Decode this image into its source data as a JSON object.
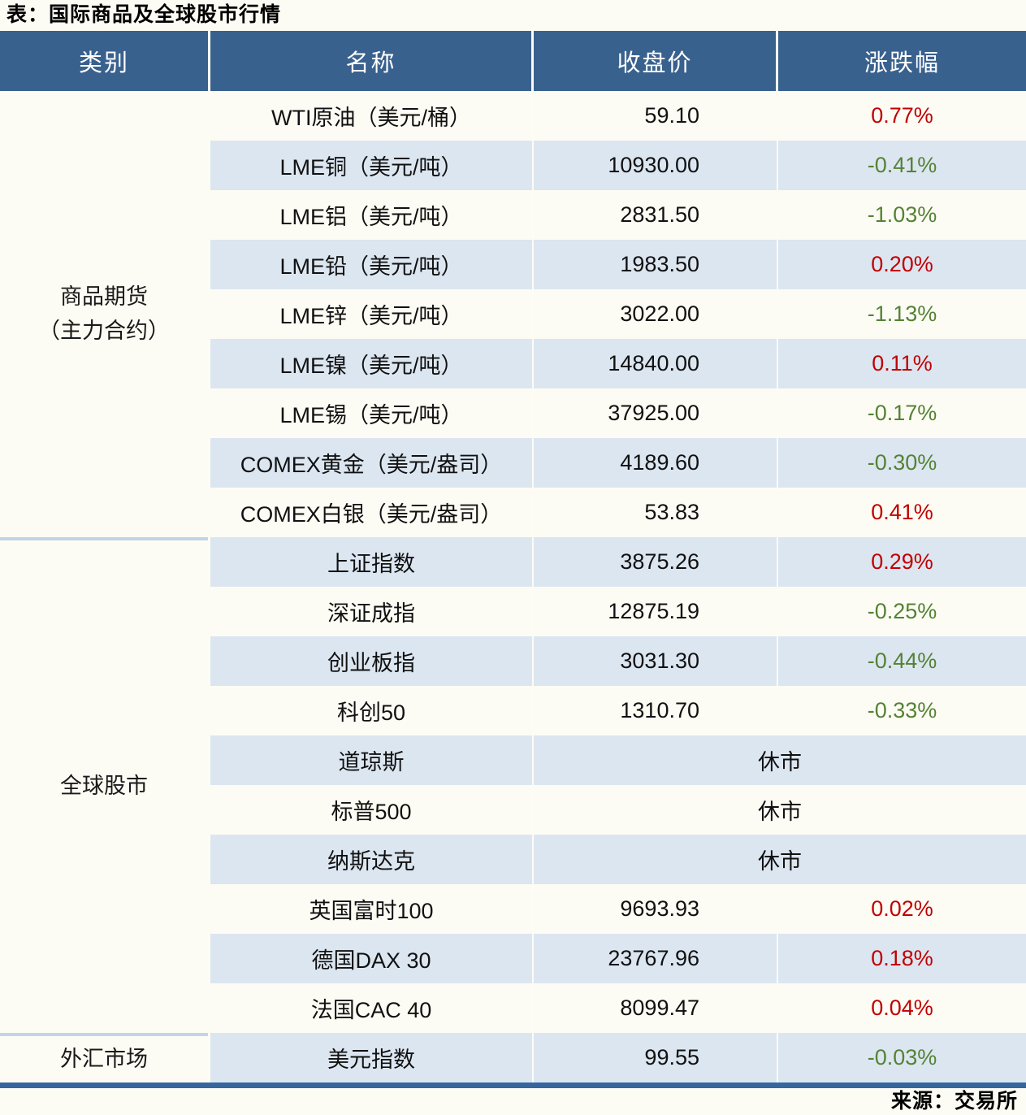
{
  "chart_data": {
    "type": "table",
    "title": "表：国际商品及全球股市行情",
    "source": "来源：交易所",
    "columns": [
      "类别",
      "名称",
      "收盘价",
      "涨跌幅"
    ],
    "closed_label": "休市",
    "category_groups": [
      {
        "lines": [
          "商品期货",
          "（主力合约）"
        ],
        "rows": "1-9"
      },
      {
        "lines": [
          "全球股市"
        ],
        "rows": "10-19"
      },
      {
        "lines": [
          "外汇市场"
        ],
        "rows": "20"
      }
    ],
    "rows": [
      {
        "name": "WTI原油（美元/桶）",
        "close": "59.10",
        "change": "0.77%",
        "dir": "up"
      },
      {
        "name": "LME铜（美元/吨）",
        "close": "10930.00",
        "change": "-0.41%",
        "dir": "down"
      },
      {
        "name": "LME铝（美元/吨）",
        "close": "2831.50",
        "change": "-1.03%",
        "dir": "down"
      },
      {
        "name": "LME铅（美元/吨）",
        "close": "1983.50",
        "change": "0.20%",
        "dir": "up"
      },
      {
        "name": "LME锌（美元/吨）",
        "close": "3022.00",
        "change": "-1.13%",
        "dir": "down"
      },
      {
        "name": "LME镍（美元/吨）",
        "close": "14840.00",
        "change": "0.11%",
        "dir": "up"
      },
      {
        "name": "LME锡（美元/吨）",
        "close": "37925.00",
        "change": "-0.17%",
        "dir": "down"
      },
      {
        "name": "COMEX黄金（美元/盎司）",
        "close": "4189.60",
        "change": "-0.30%",
        "dir": "down"
      },
      {
        "name": "COMEX白银（美元/盎司）",
        "close": "53.83",
        "change": "0.41%",
        "dir": "up"
      },
      {
        "name": "上证指数",
        "close": "3875.26",
        "change": "0.29%",
        "dir": "up"
      },
      {
        "name": "深证成指",
        "close": "12875.19",
        "change": "-0.25%",
        "dir": "down"
      },
      {
        "name": "创业板指",
        "close": "3031.30",
        "change": "-0.44%",
        "dir": "down"
      },
      {
        "name": "科创50",
        "close": "1310.70",
        "change": "-0.33%",
        "dir": "down"
      },
      {
        "name": "道琼斯",
        "status": "休市"
      },
      {
        "name": "标普500",
        "status": "休市"
      },
      {
        "name": "纳斯达克",
        "status": "休市"
      },
      {
        "name": "英国富时100",
        "close": "9693.93",
        "change": "0.02%",
        "dir": "up"
      },
      {
        "name": "德国DAX 30",
        "close": "23767.96",
        "change": "0.18%",
        "dir": "up"
      },
      {
        "name": "法国CAC 40",
        "close": "8099.47",
        "change": "0.04%",
        "dir": "up"
      },
      {
        "name": "美元指数",
        "close": "99.55",
        "change": "-0.03%",
        "dir": "down"
      }
    ]
  },
  "colors": {
    "header_bg": "#39618E",
    "row_stripe": "#DCE6F1",
    "up_red": "#C00000",
    "down_green": "#548235",
    "bottom_border_blue": "#35679E"
  }
}
